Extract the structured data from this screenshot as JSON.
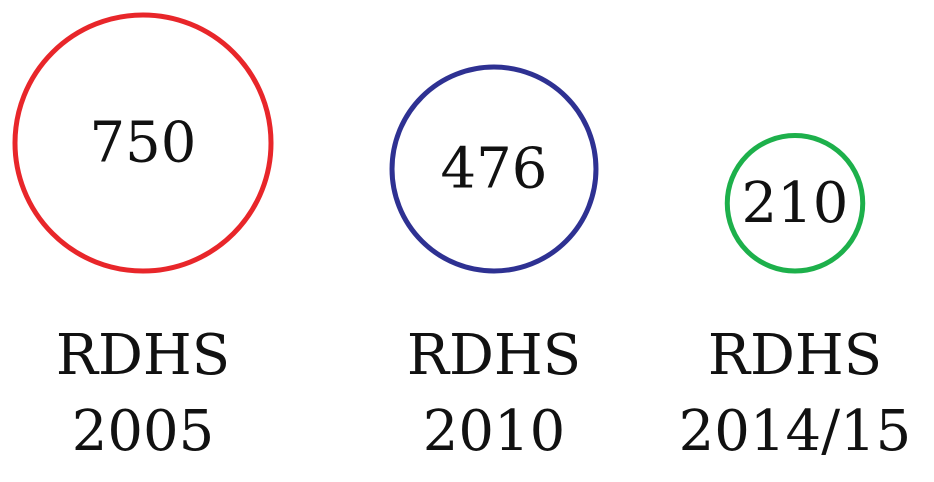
{
  "chart_data": {
    "type": "bubble",
    "categories": [
      "RDHS\n2005",
      "RDHS\n2010",
      "RDHS\n2014/15"
    ],
    "values": [
      750,
      476,
      210
    ],
    "colors": [
      "#e8262a",
      "#2e3192",
      "#1db04b"
    ]
  }
}
